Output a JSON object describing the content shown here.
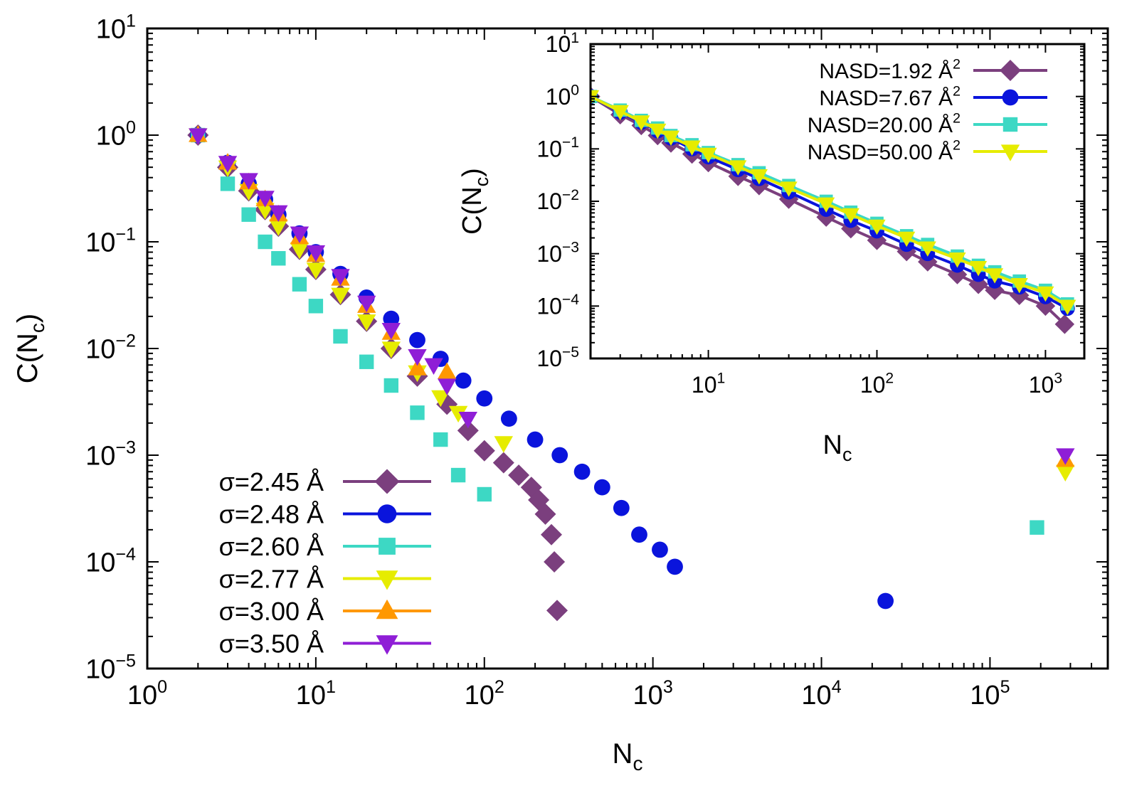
{
  "chart_data": [
    {
      "type": "scatter",
      "role": "main",
      "xlabel": "N",
      "xlabel_sub": "c",
      "ylabel": "C(N",
      "ylabel_sub": "c",
      "ylabel_tail": ")",
      "xscale": "log",
      "yscale": "log",
      "xlim": [
        1,
        500000
      ],
      "ylim": [
        1e-05,
        10
      ],
      "xticks": [
        {
          "v": 1,
          "exp": "0"
        },
        {
          "v": 10,
          "exp": "1"
        },
        {
          "v": 100,
          "exp": "2"
        },
        {
          "v": 1000,
          "exp": "3"
        },
        {
          "v": 10000,
          "exp": "4"
        },
        {
          "v": 100000,
          "exp": "5"
        }
      ],
      "yticks": [
        {
          "v": 1e-05,
          "exp": "−5"
        },
        {
          "v": 0.0001,
          "exp": "−4"
        },
        {
          "v": 0.001,
          "exp": "−3"
        },
        {
          "v": 0.01,
          "exp": "−2"
        },
        {
          "v": 0.1,
          "exp": "−1"
        },
        {
          "v": 1,
          "exp": "0"
        },
        {
          "v": 10,
          "exp": "1"
        }
      ],
      "tick_base": "10",
      "grid": false,
      "legend_position": "bottom-left",
      "series": [
        {
          "name": "σ=2.45 Å",
          "color": "#7b3f7e",
          "marker": "diamond",
          "x": [
            2,
            3,
            4,
            5,
            6,
            8,
            10,
            14,
            20,
            28,
            40,
            60,
            80,
            100,
            130,
            160,
            190,
            210,
            230,
            250,
            260,
            270
          ],
          "y": [
            1.0,
            0.5,
            0.3,
            0.2,
            0.14,
            0.085,
            0.055,
            0.032,
            0.018,
            0.01,
            0.0055,
            0.003,
            0.0017,
            0.0011,
            0.00085,
            0.00065,
            0.0005,
            0.00038,
            0.00028,
            0.00018,
            0.0001,
            3.5e-05
          ]
        },
        {
          "name": "σ=2.48 Å",
          "color": "#0a14dc",
          "marker": "circle",
          "x": [
            2,
            3,
            4,
            5,
            6,
            8,
            10,
            14,
            20,
            28,
            40,
            55,
            75,
            100,
            140,
            200,
            280,
            380,
            500,
            650,
            830,
            1100,
            1350,
            24000
          ],
          "y": [
            1.0,
            0.55,
            0.35,
            0.25,
            0.18,
            0.12,
            0.08,
            0.05,
            0.03,
            0.019,
            0.012,
            0.008,
            0.005,
            0.0034,
            0.0022,
            0.0014,
            0.001,
            0.0007,
            0.0005,
            0.00032,
            0.00018,
            0.00013,
            9e-05,
            4.3e-05
          ]
        },
        {
          "name": "σ=2.60 Å",
          "color": "#3dd8c4",
          "marker": "square",
          "x": [
            2,
            3,
            4,
            5,
            6,
            8,
            10,
            14,
            20,
            28,
            40,
            55,
            70,
            100,
            190000
          ],
          "y": [
            1.0,
            0.35,
            0.18,
            0.1,
            0.07,
            0.04,
            0.025,
            0.013,
            0.0075,
            0.0045,
            0.0025,
            0.0014,
            0.00065,
            0.00043,
            0.00021
          ]
        },
        {
          "name": "σ=2.77 Å",
          "color": "#e6ec00",
          "marker": "triangle-down",
          "x": [
            2,
            3,
            4,
            5,
            6,
            8,
            10,
            14,
            20,
            28,
            40,
            55,
            70,
            130,
            280000
          ],
          "y": [
            1.0,
            0.5,
            0.3,
            0.2,
            0.14,
            0.085,
            0.055,
            0.032,
            0.018,
            0.01,
            0.006,
            0.0035,
            0.0025,
            0.0013,
            0.0007
          ]
        },
        {
          "name": "σ=3.00 Å",
          "color": "#ff9800",
          "marker": "triangle-up",
          "x": [
            2,
            3,
            4,
            5,
            6,
            8,
            10,
            14,
            20,
            28,
            40,
            60,
            280000
          ],
          "y": [
            1.0,
            0.55,
            0.36,
            0.25,
            0.18,
            0.11,
            0.075,
            0.045,
            0.025,
            0.014,
            0.0065,
            0.006,
            0.0009
          ]
        },
        {
          "name": "σ=3.50 Å",
          "color": "#8f1ed6",
          "marker": "triangle-down",
          "x": [
            2,
            3,
            4,
            5,
            6,
            8,
            10,
            14,
            20,
            28,
            40,
            50,
            60,
            80,
            280000
          ],
          "y": [
            1.0,
            0.55,
            0.38,
            0.26,
            0.19,
            0.12,
            0.08,
            0.048,
            0.027,
            0.015,
            0.0085,
            0.007,
            0.0045,
            0.0022,
            0.001
          ]
        }
      ]
    },
    {
      "type": "line",
      "role": "inset",
      "xlabel": "N",
      "xlabel_sub": "c",
      "ylabel": "C(N",
      "ylabel_sub": "c",
      "ylabel_tail": ")",
      "xscale": "log",
      "yscale": "log",
      "xlim": [
        2,
        1700
      ],
      "ylim": [
        1e-05,
        10
      ],
      "xticks": [
        {
          "v": 10,
          "exp": "1"
        },
        {
          "v": 100,
          "exp": "2"
        },
        {
          "v": 1000,
          "exp": "3"
        }
      ],
      "yticks": [
        {
          "v": 1e-05,
          "exp": "−5"
        },
        {
          "v": 0.0001,
          "exp": "−4"
        },
        {
          "v": 0.001,
          "exp": "−3"
        },
        {
          "v": 0.01,
          "exp": "−2"
        },
        {
          "v": 0.1,
          "exp": "−1"
        },
        {
          "v": 1,
          "exp": "0"
        },
        {
          "v": 10,
          "exp": "1"
        }
      ],
      "tick_base": "10",
      "grid": false,
      "legend_position": "top-right",
      "series": [
        {
          "name": "NASD=1.92 Å",
          "name_sup": "2",
          "color": "#7b3f7e",
          "marker": "diamond",
          "x": [
            2,
            3,
            4,
            5,
            6,
            8,
            10,
            15,
            20,
            30,
            50,
            70,
            100,
            150,
            200,
            300,
            400,
            500,
            700,
            1000,
            1300
          ],
          "y": [
            1.0,
            0.45,
            0.28,
            0.18,
            0.13,
            0.08,
            0.055,
            0.03,
            0.02,
            0.011,
            0.005,
            0.003,
            0.0018,
            0.0011,
            0.0007,
            0.0004,
            0.00026,
            0.0002,
            0.00016,
            0.0001,
            4.5e-05
          ]
        },
        {
          "name": "NASD=7.67 Å",
          "name_sup": "2",
          "color": "#0a14dc",
          "marker": "circle",
          "x": [
            2,
            3,
            4,
            5,
            6,
            8,
            10,
            15,
            20,
            30,
            50,
            70,
            100,
            150,
            200,
            300,
            400,
            500,
            700,
            1000,
            1350
          ],
          "y": [
            1.0,
            0.5,
            0.32,
            0.22,
            0.16,
            0.1,
            0.07,
            0.04,
            0.027,
            0.015,
            0.007,
            0.0043,
            0.0027,
            0.0015,
            0.001,
            0.0006,
            0.0004,
            0.0003,
            0.00023,
            0.00015,
            9e-05
          ]
        },
        {
          "name": "NASD=20.00 Å",
          "name_sup": "2",
          "color": "#3dd8c4",
          "marker": "square",
          "x": [
            2,
            3,
            4,
            5,
            6,
            8,
            10,
            15,
            20,
            30,
            50,
            70,
            100,
            150,
            200,
            300,
            400,
            500,
            700,
            1000,
            1350
          ],
          "y": [
            1.0,
            0.55,
            0.35,
            0.25,
            0.18,
            0.12,
            0.085,
            0.05,
            0.035,
            0.02,
            0.01,
            0.0062,
            0.0038,
            0.0022,
            0.0015,
            0.0009,
            0.0006,
            0.00045,
            0.0003,
            0.0002,
            0.00011
          ]
        },
        {
          "name": "NASD=50.00 Å",
          "name_sup": "2",
          "color": "#e6ec00",
          "marker": "triangle-down",
          "x": [
            2,
            3,
            4,
            5,
            6,
            8,
            10,
            15,
            20,
            30,
            50,
            70,
            100,
            150,
            200,
            300,
            400,
            500,
            700,
            1000,
            1350
          ],
          "y": [
            1.0,
            0.52,
            0.33,
            0.23,
            0.17,
            0.11,
            0.08,
            0.046,
            0.031,
            0.018,
            0.009,
            0.0056,
            0.0034,
            0.002,
            0.0013,
            0.0008,
            0.00055,
            0.0004,
            0.00026,
            0.00018,
            0.0001
          ]
        }
      ]
    }
  ]
}
